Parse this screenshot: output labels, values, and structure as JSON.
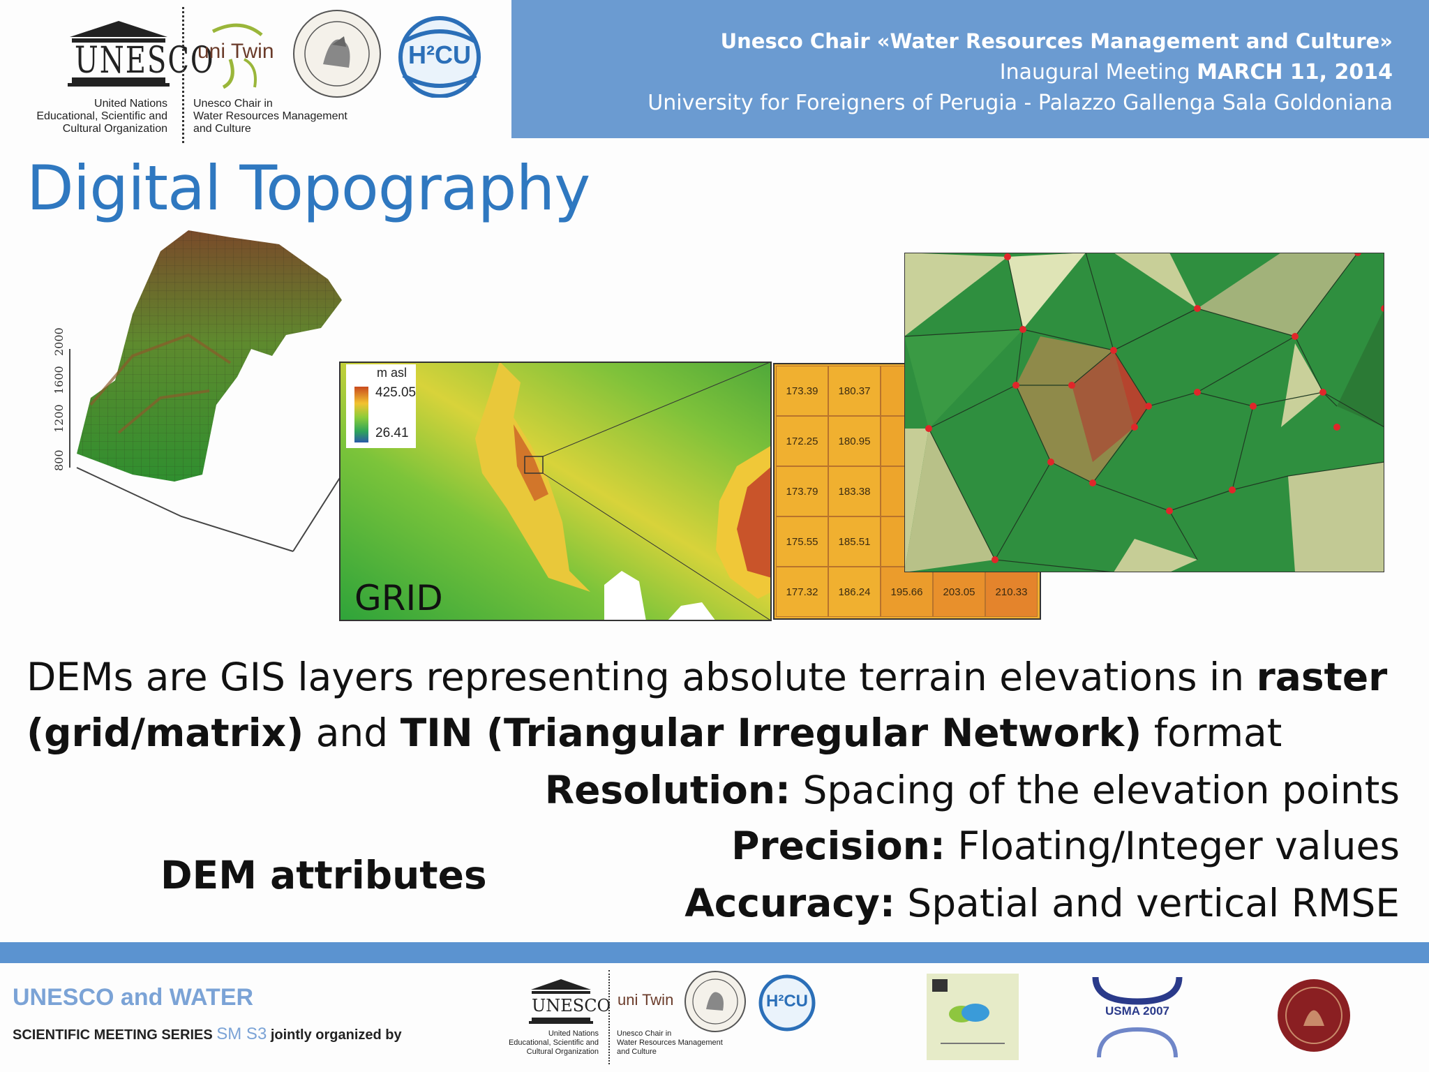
{
  "header": {
    "line1": "Unesco Chair «Water Resources Management and Culture»",
    "line2_prefix": "Inaugural Meeting ",
    "line2_date": "MARCH 11, 2014",
    "line3": "University for Foreigners of Perugia - Palazzo Gallenga Sala Goldoniana",
    "unesco_logo_word": "UNESCO",
    "unesco_caption": [
      "United Nations",
      "Educational, Scientific and",
      "Cultural Organization"
    ],
    "unitwin_logo_word": "uni Twin",
    "unitwin_caption": [
      "Unesco Chair in",
      "Water Resources Management",
      "and Culture"
    ],
    "h2cu_logo_word": "H²CU",
    "band_color": "#6b9bd1"
  },
  "title": "Digital Topography",
  "figure": {
    "surface_axis_ticks": [
      "800",
      "1200",
      "1600",
      "2000"
    ],
    "legend_unit": "m asl",
    "legend_max": "425.05",
    "legend_min": "26.41",
    "grid_label": "GRID",
    "table_columns": [
      [
        "173.39",
        "172.25",
        "173.79",
        "175.55",
        "177.32"
      ],
      [
        "180.37",
        "180.95",
        "183.38",
        "185.51",
        "186.24"
      ],
      [
        "",
        "",
        "",
        "",
        "195.66"
      ],
      [
        "",
        "",
        "",
        "",
        "203.05"
      ],
      [
        "",
        "",
        "",
        "",
        "210.33"
      ]
    ]
  },
  "body": {
    "p1_a": "DEMs are GIS layers representing absolute terrain elevations in ",
    "p1_b": "raster (grid/matrix)",
    "p1_c": " and ",
    "p1_d": "TIN (Triangular Irregular Network)",
    "p1_e": " format"
  },
  "attributes": {
    "heading": "DEM attributes",
    "items": [
      {
        "label": "Resolution:",
        "text": " Spacing of the elevation points"
      },
      {
        "label": "Precision:",
        "text": " Floating/Integer values"
      },
      {
        "label": "Accuracy:",
        "text": " Spatial and vertical RMSE"
      }
    ]
  },
  "footer": {
    "title": "UNESCO and WATER",
    "sub_a": "SCIENTIFIC MEETING SERIES ",
    "sub_sm": "SM S3",
    "sub_b": " jointly organized by",
    "usma_word": "USMA 2007"
  }
}
